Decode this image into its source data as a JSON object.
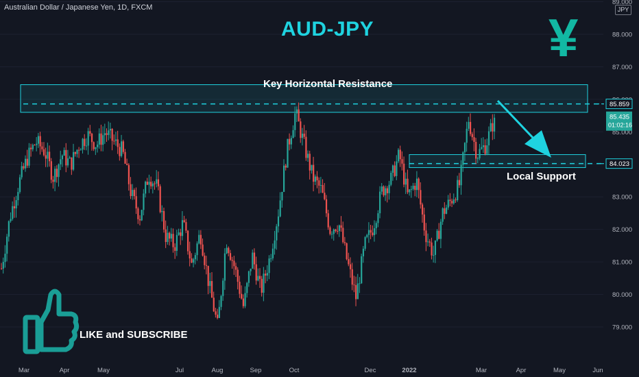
{
  "symbol_header": "Australian Dollar / Japanese Yen, 1D, FXCM",
  "unit_label": "JPY",
  "title": "AUD-JPY",
  "yen_glyph": "¥",
  "annotations": {
    "resistance": "Key Horizontal Resistance",
    "support": "Local Support",
    "like": "LIKE and SUBSCRIBE"
  },
  "price_labels": {
    "resistance": "85.859",
    "last_price": "85.435",
    "countdown": "01:02:16",
    "support": "84.023"
  },
  "colors": {
    "background": "#131722",
    "up_candle": "#26a69a",
    "down_candle": "#ef5350",
    "accent_cyan": "#1fd3e0",
    "yen_green": "#12b8a3"
  },
  "chart_data": {
    "type": "candlestick",
    "title": "AUD-JPY",
    "xlabel": "",
    "ylabel": "",
    "ylim": [
      78.0,
      89.0
    ],
    "y_ticks": [
      "79.000",
      "80.000",
      "81.000",
      "82.000",
      "83.000",
      "84.000",
      "85.000",
      "86.000",
      "87.000",
      "88.000",
      "89.000"
    ],
    "x_ticks": [
      "Mar",
      "Apr",
      "May",
      "Jul",
      "Aug",
      "Sep",
      "Oct",
      "Dec",
      "2022",
      "Mar",
      "Apr",
      "May",
      "Jun"
    ],
    "levels": [
      {
        "name": "resistance",
        "value": 85.859,
        "zone": [
          85.6,
          86.45
        ]
      },
      {
        "name": "support",
        "value": 84.023,
        "zone": [
          83.9,
          84.3
        ]
      }
    ],
    "last_price": 85.435,
    "anchors": [
      80.8,
      82.4,
      83.4,
      84.2,
      84.7,
      84.4,
      83.6,
      84.3,
      84.0,
      84.6,
      84.9,
      84.6,
      85.0,
      84.7,
      84.4,
      83.1,
      82.4,
      83.7,
      83.3,
      81.8,
      81.5,
      82.2,
      80.9,
      81.9,
      80.3,
      79.0,
      81.7,
      80.8,
      79.6,
      81.2,
      80.1,
      81.1,
      82.5,
      84.4,
      85.6,
      84.6,
      83.6,
      83.2,
      82.0,
      82.2,
      81.0,
      79.9,
      81.5,
      82.1,
      83.2,
      83.5,
      84.3,
      83.0,
      83.5,
      81.9,
      81.2,
      82.5,
      82.9,
      83.4,
      85.4,
      84.3,
      84.6,
      85.4
    ],
    "series_range": {
      "start": "Feb 2021",
      "end": "Mar 2022"
    }
  }
}
